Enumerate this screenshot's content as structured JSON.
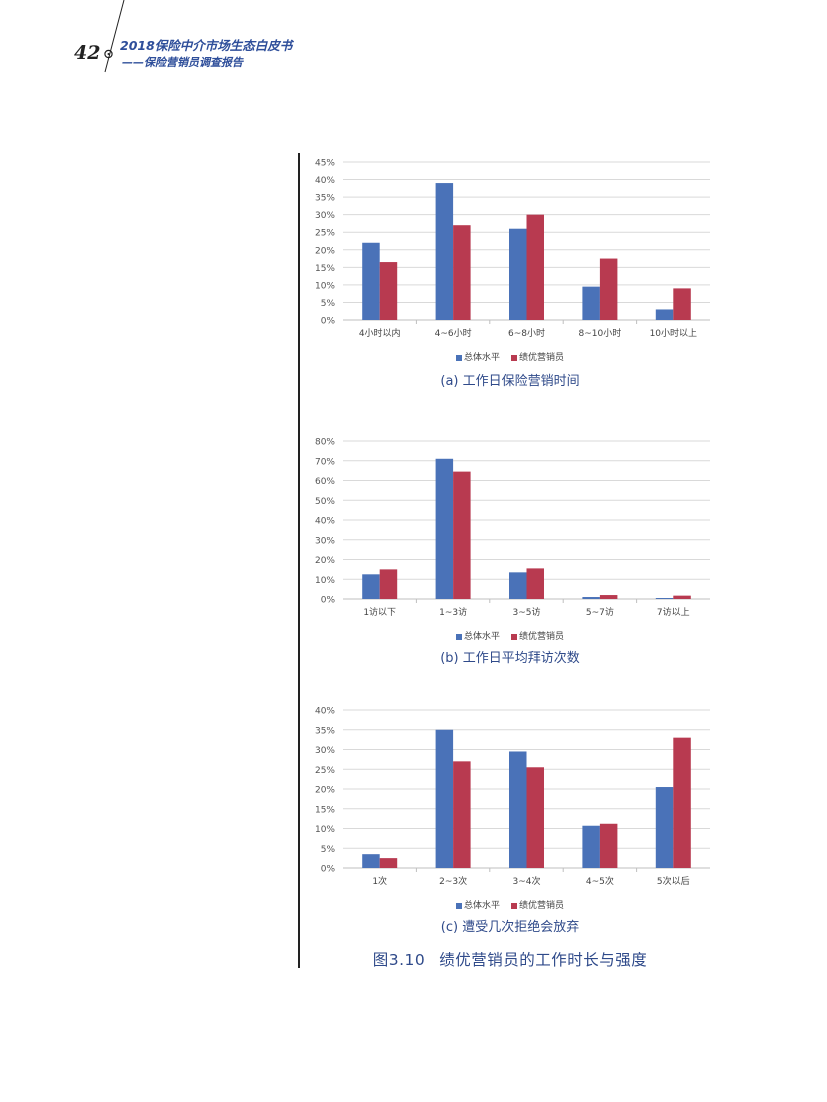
{
  "header": {
    "page_number": "42",
    "book_title": "2018保险中介市场生态白皮书",
    "book_subtitle": "——保险营销员调查报告"
  },
  "legend": {
    "series_a": "总体水平",
    "series_b": "绩优营销员"
  },
  "colors": {
    "series_a": "#4a72b8",
    "series_b": "#b83a50",
    "grid": "#d9d9d9",
    "caption": "#2f4a8a"
  },
  "figure_caption": {
    "number": "图3.10",
    "title": "绩优营销员的工作时长与强度"
  },
  "chart_data": [
    {
      "type": "bar",
      "title": "(a) 工作日保险营销时间",
      "categories": [
        "4小时以内",
        "4~6小时",
        "6~8小时",
        "8~10小时",
        "10小时以上"
      ],
      "series": [
        {
          "name": "总体水平",
          "values": [
            22,
            39,
            26,
            9.5,
            3
          ]
        },
        {
          "name": "绩优营销员",
          "values": [
            16.5,
            27,
            30,
            17.5,
            9
          ]
        }
      ],
      "xlabel": "",
      "ylabel": "",
      "ylim": [
        0,
        45
      ],
      "yticks": [
        "0%",
        "5%",
        "10%",
        "15%",
        "20%",
        "25%",
        "30%",
        "35%",
        "40%",
        "45%"
      ],
      "grid": true,
      "legend_position": "bottom"
    },
    {
      "type": "bar",
      "title": "(b) 工作日平均拜访次数",
      "categories": [
        "1访以下",
        "1~3访",
        "3~5访",
        "5~7访",
        "7访以上"
      ],
      "series": [
        {
          "name": "总体水平",
          "values": [
            12.5,
            71,
            13.5,
            1,
            0.5
          ]
        },
        {
          "name": "绩优营销员",
          "values": [
            15,
            64.5,
            15.5,
            2,
            1.7
          ]
        }
      ],
      "xlabel": "",
      "ylabel": "",
      "ylim": [
        0,
        80
      ],
      "yticks": [
        "0%",
        "10%",
        "20%",
        "30%",
        "40%",
        "50%",
        "60%",
        "70%",
        "80%"
      ],
      "grid": true,
      "legend_position": "bottom"
    },
    {
      "type": "bar",
      "title": "(c) 遭受几次拒绝会放弃",
      "categories": [
        "1次",
        "2~3次",
        "3~4次",
        "4~5次",
        "5次以后"
      ],
      "series": [
        {
          "name": "总体水平",
          "values": [
            3.5,
            35,
            29.5,
            10.7,
            20.5
          ]
        },
        {
          "name": "绩优营销员",
          "values": [
            2.5,
            27,
            25.5,
            11.2,
            33
          ]
        }
      ],
      "xlabel": "",
      "ylabel": "",
      "ylim": [
        0,
        40
      ],
      "yticks": [
        "0%",
        "5%",
        "10%",
        "15%",
        "20%",
        "25%",
        "30%",
        "35%",
        "40%"
      ],
      "grid": true,
      "legend_position": "bottom"
    }
  ]
}
